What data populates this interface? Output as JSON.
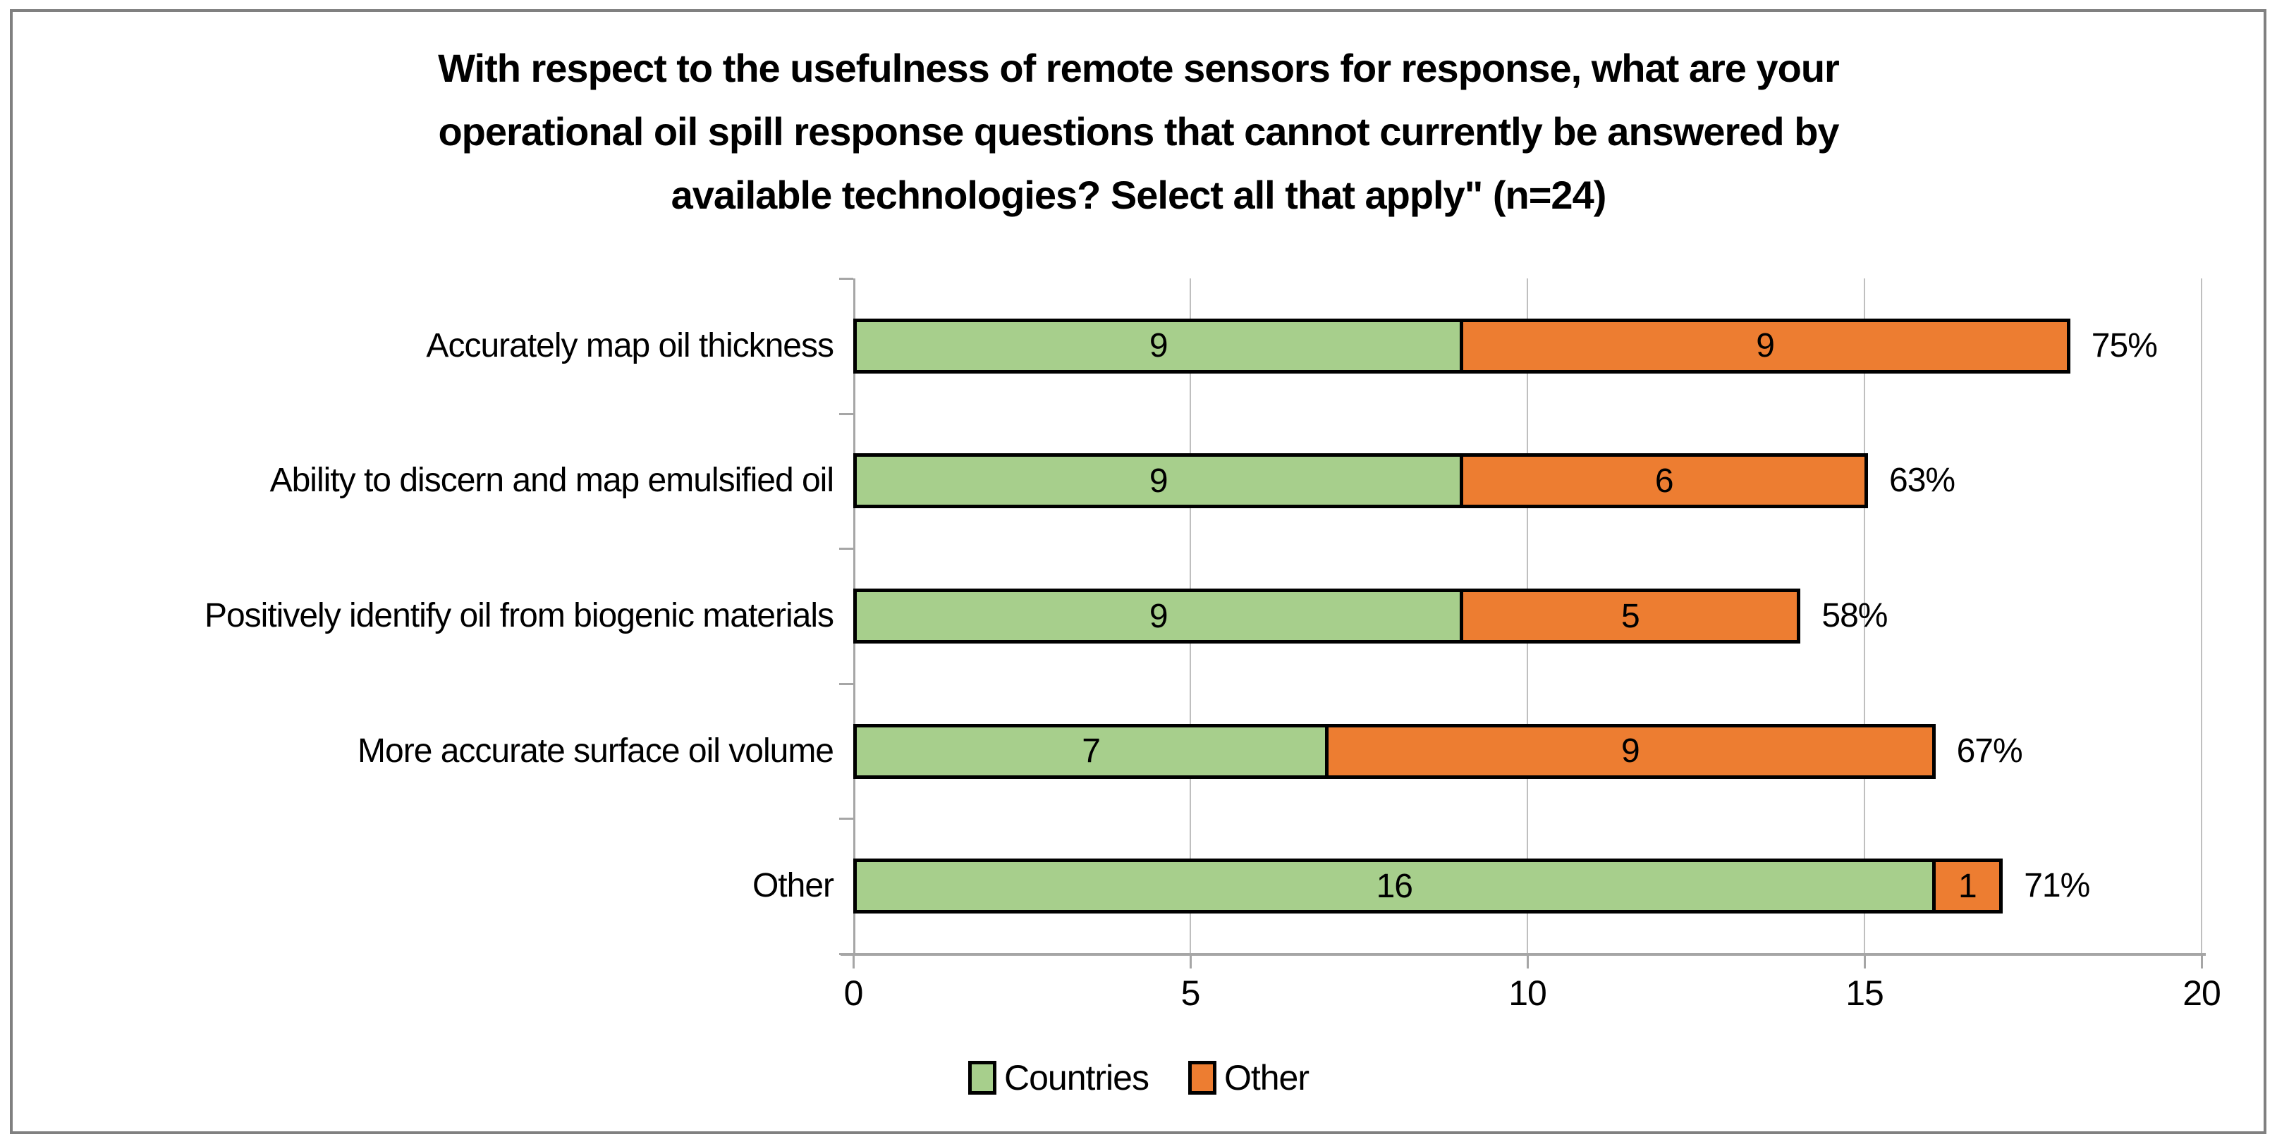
{
  "chart_data": {
    "type": "bar",
    "orientation": "horizontal",
    "stacked": true,
    "title": "With respect to the usefulness of remote sensors for response, what are your operational oil spill response questions that cannot currently be answered by available technologies? Select all that apply\" (n=24)",
    "title_lines": [
      "With respect to the usefulness of remote sensors for response, what are your",
      "operational oil spill response questions that cannot currently be answered by",
      "available technologies? Select all that apply\" (n=24)"
    ],
    "n": 24,
    "categories": [
      "Accurately map oil thickness",
      "Ability to discern and map emulsified oil",
      "Positively identify oil from biogenic materials",
      "More accurate surface oil volume",
      "Other"
    ],
    "series": [
      {
        "name": "Countries",
        "color": "#A7CF8C",
        "values": [
          9,
          9,
          9,
          7,
          16
        ]
      },
      {
        "name": "Other",
        "color": "#ED7D31",
        "values": [
          9,
          6,
          5,
          9,
          1
        ]
      }
    ],
    "totals": [
      18,
      15,
      14,
      16,
      17
    ],
    "percent_labels": [
      "75%",
      "63%",
      "58%",
      "67%",
      "71%"
    ],
    "x_axis": {
      "min": 0,
      "max": 20,
      "ticks": [
        0,
        5,
        10,
        15,
        20
      ]
    },
    "legend_position": "bottom",
    "grid": "vertical",
    "ylim": [
      0,
      20
    ],
    "xlabel": "",
    "ylabel": "",
    "colors": {
      "bar_border": "#000000",
      "gridline": "#BFBFBF",
      "axis_line": "#A6A6A6",
      "frame_border": "#808080",
      "text": "#000000",
      "background": "#FFFFFF"
    }
  }
}
